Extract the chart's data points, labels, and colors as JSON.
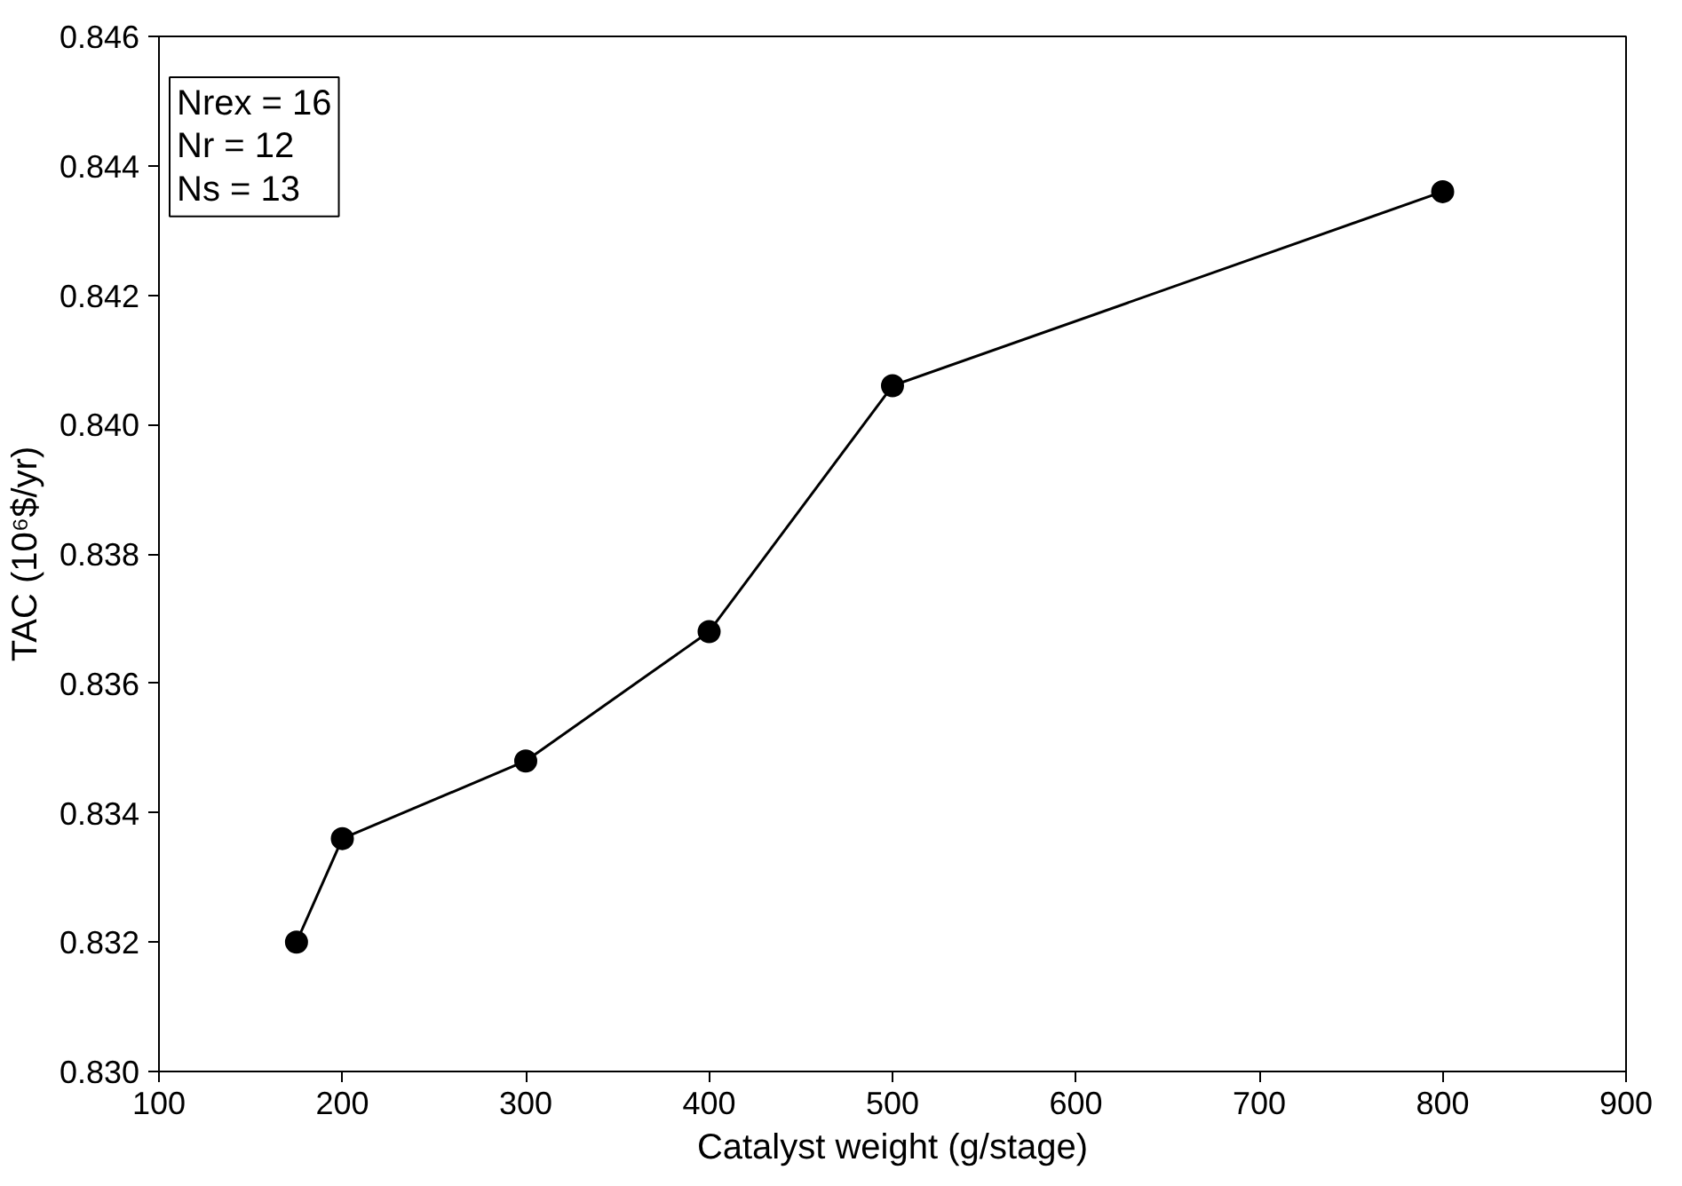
{
  "chart_data": {
    "type": "line",
    "xlabel": "Catalyst weight (g/stage)",
    "ylabel": "TAC (10⁶$/yr)",
    "x": [
      175,
      200,
      300,
      400,
      500,
      800
    ],
    "series": [
      {
        "color": "#000000",
        "values": [
          0.832,
          0.8336,
          0.8348,
          0.8368,
          0.8406,
          0.8436
        ]
      }
    ],
    "xlim": [
      100,
      900
    ],
    "xticks": [
      100,
      200,
      300,
      400,
      500,
      600,
      700,
      800,
      900
    ],
    "ylim": [
      0.83,
      0.846
    ],
    "yticks": [
      {
        "value": 0.83,
        "label": "0.830"
      },
      {
        "value": 0.832,
        "label": "0.832"
      },
      {
        "value": 0.834,
        "label": "0.834"
      },
      {
        "value": 0.836,
        "label": "0.836"
      },
      {
        "value": 0.838,
        "label": "0.838"
      },
      {
        "value": 0.84,
        "label": "0.840"
      },
      {
        "value": 0.842,
        "label": "0.842"
      },
      {
        "value": 0.844,
        "label": "0.844"
      },
      {
        "value": 0.846,
        "label": "0.846"
      }
    ],
    "annotations": [
      "Nrex = 16",
      "Nr = 12",
      "Ns = 13"
    ],
    "marker": "circle",
    "line_style": "solid"
  }
}
